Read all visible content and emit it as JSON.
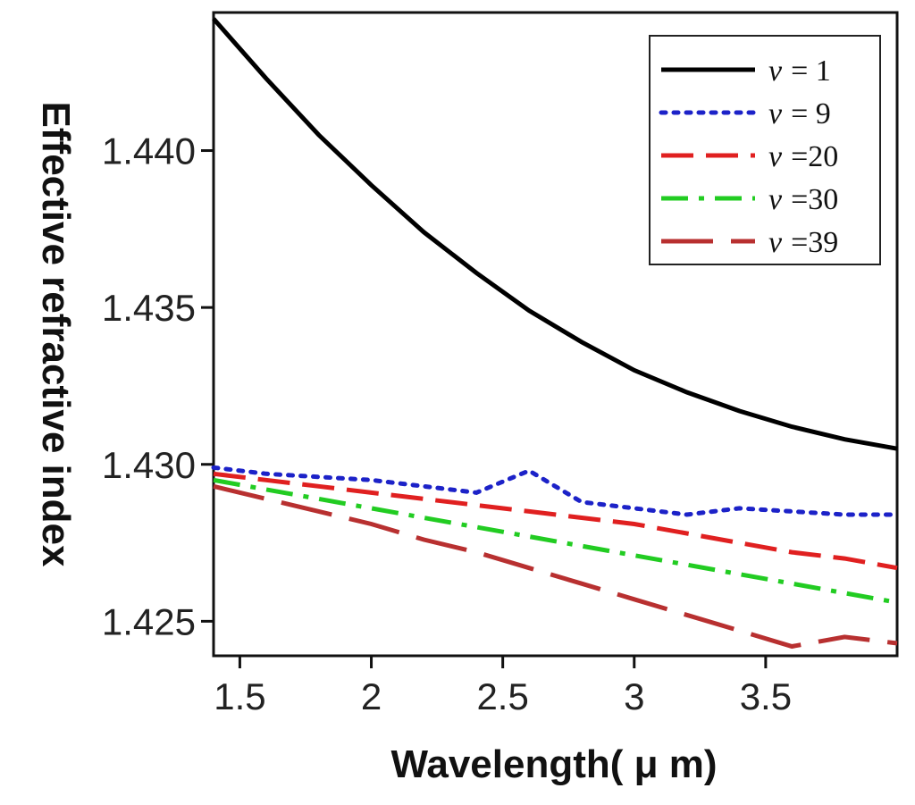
{
  "chart_data": {
    "type": "line",
    "xlabel": "Wavelength( μ m)",
    "ylabel": "Effective refractive index",
    "xlim": [
      1.4,
      4.0
    ],
    "ylim": [
      1.4239,
      1.4444
    ],
    "xticks": [
      1.5,
      2,
      2.5,
      3,
      3.5
    ],
    "xtick_labels": [
      "1.5",
      "2",
      "2.5",
      "3",
      "3.5"
    ],
    "yticks": [
      1.425,
      1.43,
      1.435,
      1.44
    ],
    "ytick_labels": [
      "1.425",
      "1.430",
      "1.435",
      "1.440"
    ],
    "grid": false,
    "legend_position": "top-right",
    "x": [
      1.4,
      1.6,
      1.8,
      2.0,
      2.2,
      2.4,
      2.6,
      2.8,
      3.0,
      3.2,
      3.4,
      3.6,
      3.8,
      4.0
    ],
    "series": [
      {
        "name": "ν = 1",
        "legend_symbol": "ν",
        "legend_value": "= 1",
        "color": "#000000",
        "dash": "solid",
        "values": [
          1.4442,
          1.4423,
          1.4405,
          1.4389,
          1.4374,
          1.4361,
          1.4349,
          1.4339,
          1.433,
          1.4323,
          1.4317,
          1.4312,
          1.4308,
          1.4305
        ]
      },
      {
        "name": "ν = 9",
        "legend_symbol": "ν",
        "legend_value": "= 9",
        "color": "#1c22c8",
        "dash": "dotted",
        "values": [
          1.4299,
          1.4297,
          1.4296,
          1.4295,
          1.4293,
          1.4291,
          1.4298,
          1.4288,
          1.4286,
          1.4284,
          1.4286,
          1.4285,
          1.4284,
          1.4284
        ]
      },
      {
        "name": "ν=20",
        "legend_symbol": "ν",
        "legend_value": "=20",
        "color": "#e02020",
        "dash": "long-dash",
        "values": [
          1.4297,
          1.4295,
          1.4293,
          1.4291,
          1.4289,
          1.4287,
          1.4285,
          1.4283,
          1.4281,
          1.4278,
          1.4275,
          1.4272,
          1.427,
          1.4267
        ]
      },
      {
        "name": "ν=30",
        "legend_symbol": "ν",
        "legend_value": "=30",
        "color": "#22cc22",
        "dash": "dash-dot",
        "values": [
          1.4295,
          1.4292,
          1.4289,
          1.4286,
          1.4283,
          1.428,
          1.4277,
          1.4274,
          1.4271,
          1.4268,
          1.4265,
          1.4262,
          1.4259,
          1.4256
        ]
      },
      {
        "name": "ν=39",
        "legend_symbol": "ν",
        "legend_value": "=39",
        "color": "#b83030",
        "dash": "long-dash-wide",
        "values": [
          1.4293,
          1.4289,
          1.4285,
          1.4281,
          1.4276,
          1.4272,
          1.4267,
          1.4262,
          1.4257,
          1.4252,
          1.4247,
          1.4242,
          1.4245,
          1.4243
        ]
      }
    ]
  }
}
